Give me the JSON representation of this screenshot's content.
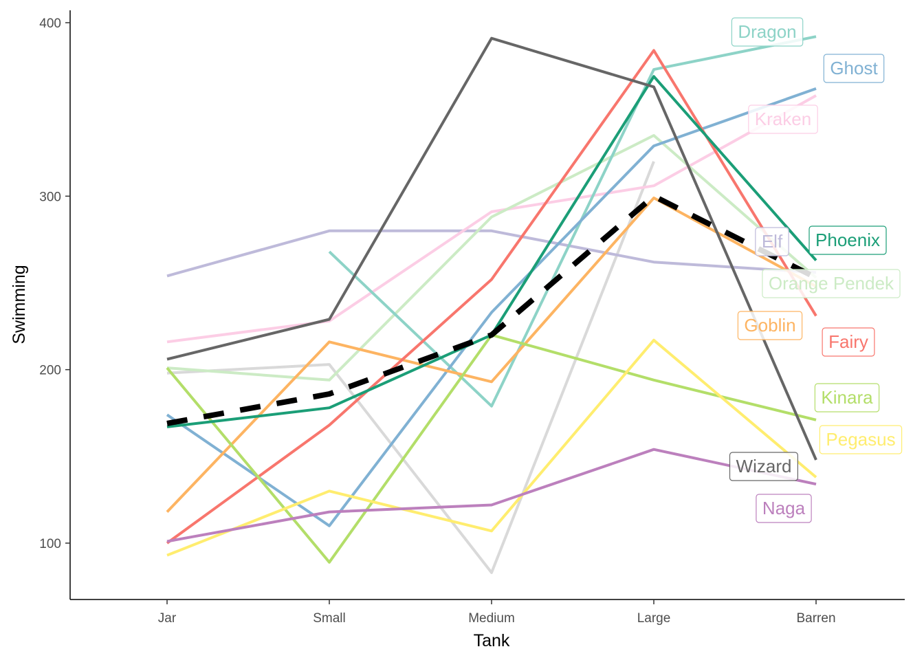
{
  "chart_data": {
    "type": "line",
    "title": "",
    "xlabel": "Tank",
    "ylabel": "Swimming",
    "categories": [
      "Jar",
      "Small",
      "Medium",
      "Large",
      "Barren"
    ],
    "yticks": [
      100,
      200,
      300,
      400
    ],
    "ylim": [
      67,
      407
    ],
    "grid": false,
    "series": [
      {
        "name": "Dragon",
        "color": "#8dd3c7",
        "values": [
          null,
          268,
          179,
          373,
          392
        ]
      },
      {
        "name": "Ghost",
        "color": "#80b1d3",
        "values": [
          174,
          110,
          233,
          329,
          362
        ]
      },
      {
        "name": "Kraken",
        "color": "#fccde5",
        "values": [
          216,
          228,
          291,
          306,
          358
        ]
      },
      {
        "name": "Elf",
        "color": "#bebada",
        "values": [
          254,
          280,
          280,
          262,
          256
        ]
      },
      {
        "name": "Phoenix",
        "color": "#1b9e77",
        "values": [
          167,
          178,
          220,
          369,
          263
        ]
      },
      {
        "name": "Orange Pendek",
        "color": "#ccebc5",
        "values": [
          201,
          194,
          288,
          335,
          253
        ]
      },
      {
        "name": "Goblin",
        "color": "#fdb462",
        "values": [
          118,
          216,
          193,
          299,
          248
        ]
      },
      {
        "name": "Fairy",
        "color": "#f8766d",
        "values": [
          100,
          168,
          252,
          384,
          231
        ]
      },
      {
        "name": "Kinara",
        "color": "#b3de69",
        "values": [
          201,
          89,
          220,
          194,
          171
        ]
      },
      {
        "name": "Pegasus",
        "color": "#ffed6f",
        "values": [
          93,
          130,
          107,
          217,
          138
        ]
      },
      {
        "name": "Wizard",
        "color": "#666666",
        "values": [
          206,
          229,
          391,
          363,
          148
        ]
      },
      {
        "name": "Naga",
        "color": "#bc80bd",
        "values": [
          101,
          118,
          122,
          154,
          134
        ]
      },
      {
        "name": "",
        "color": "#d9d9d9",
        "values": [
          198,
          203,
          83,
          320,
          null
        ]
      },
      {
        "name": "",
        "color": "#000000",
        "dashed": true,
        "values": [
          169,
          186,
          220,
          300,
          253
        ]
      }
    ]
  }
}
